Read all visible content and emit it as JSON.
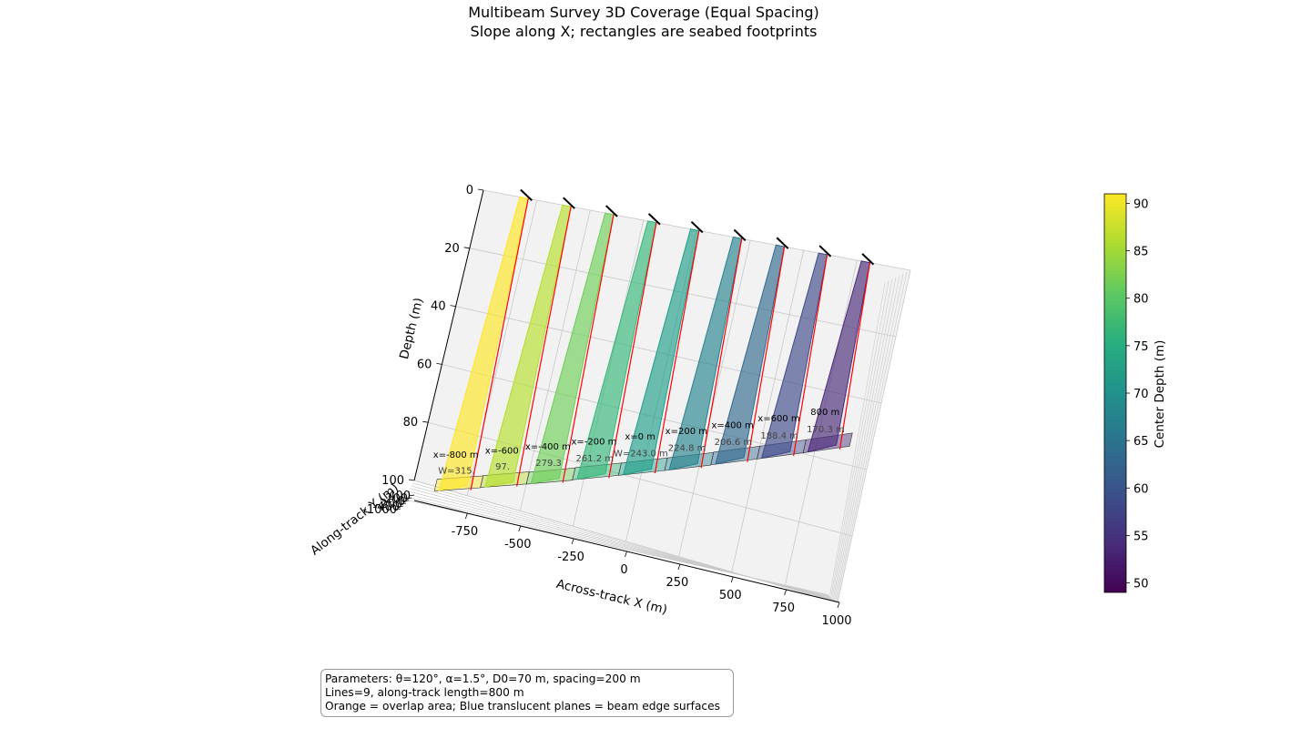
{
  "chart_data": {
    "type": "3d-coverage",
    "title": "Multibeam Survey 3D Coverage (Equal Spacing)",
    "subtitle": "Slope along X; rectangles are seabed footprints",
    "xlabel": "Across-track X (m)",
    "ylabel": "Along-track Y (m)",
    "zlabel": "Depth (m)",
    "xlim": [
      -1000,
      1000
    ],
    "zlim": [
      0,
      100
    ],
    "x_ticks": [
      "-750",
      "-500",
      "-250",
      "0",
      "250",
      "500",
      "750",
      "1000"
    ],
    "y_ticks": [
      "400",
      "200",
      "0",
      "-200",
      "-400",
      "-1000"
    ],
    "z_ticks": [
      "0",
      "20",
      "40",
      "60",
      "80",
      "100"
    ],
    "colorbar": {
      "label": "Center Depth (m)",
      "min": 49,
      "max": 91,
      "ticks": [
        "90",
        "85",
        "80",
        "75",
        "70",
        "65",
        "60",
        "55",
        "50"
      ],
      "colormap": "viridis"
    },
    "lines": [
      {
        "x": -800,
        "center_depth": 90.9,
        "x_label": "x=-800 m",
        "w_label": "W=315."
      },
      {
        "x": -600,
        "center_depth": 85.6,
        "x_label": "x=-600",
        "w_label": "97."
      },
      {
        "x": -400,
        "center_depth": 80.5,
        "x_label": "x=-400 m",
        "w_label": "279.3"
      },
      {
        "x": -200,
        "center_depth": 75.2,
        "x_label": "x=-200 m",
        "w_label": "261.2 m"
      },
      {
        "x": 0,
        "center_depth": 70.0,
        "x_label": "x=0 m",
        "w_label": "W=243.0 m"
      },
      {
        "x": 200,
        "center_depth": 64.8,
        "x_label": "x=200 m",
        "w_label": "224.8 m"
      },
      {
        "x": 400,
        "center_depth": 59.5,
        "x_label": "x=400 m",
        "w_label": "206.6 m"
      },
      {
        "x": 600,
        "center_depth": 54.3,
        "x_label": "x=600 m",
        "w_label": "188.4 m"
      },
      {
        "x": 800,
        "center_depth": 49.1,
        "x_label": "800 m",
        "w_label": "170.3 m"
      }
    ],
    "line_colors": [
      "#fde725",
      "#b5de2b",
      "#6ece58",
      "#35b779",
      "#1f9e89",
      "#26828e",
      "#31688e",
      "#3e4989",
      "#482878"
    ]
  },
  "params": {
    "line1": "Parameters: θ=120°, α=1.5°, D0=70 m, spacing=200 m",
    "line2": "Lines=9, along-track length=800 m",
    "line3": "Orange = overlap area; Blue translucent planes = beam edge surfaces"
  }
}
